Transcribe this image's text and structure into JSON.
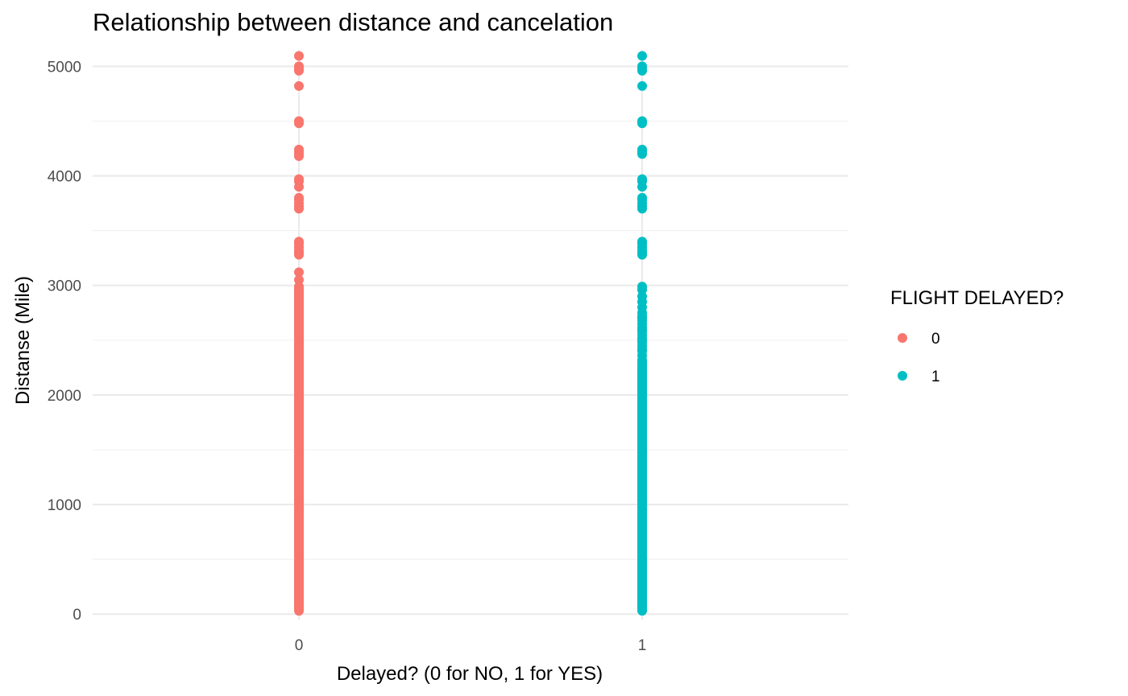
{
  "chart_data": {
    "type": "scatter",
    "title": "Relationship between distance and cancelation",
    "xlabel": "Delayed? (0 for NO, 1 for YES)",
    "ylabel": "Distanse (Mile)",
    "categories": [
      "0",
      "1"
    ],
    "ylim": [
      -50,
      5150
    ],
    "y_ticks": [
      0,
      1000,
      2000,
      3000,
      4000,
      5000
    ],
    "y_tick_labels": [
      "0",
      "1000",
      "2000",
      "3000",
      "4000",
      "5000"
    ],
    "grid": true,
    "legend": {
      "title": "FLIGHT DELAYED?",
      "position": "right",
      "entries": [
        {
          "label": "0",
          "color": "#F8766D"
        },
        {
          "label": "1",
          "color": "#00BFC4"
        }
      ]
    },
    "series": [
      {
        "category": "0",
        "color": "#F8766D",
        "dense_range": [
          30,
          2990
        ],
        "values": [
          3050,
          3120,
          3280,
          3300,
          3320,
          3350,
          3380,
          3400,
          3700,
          3720,
          3750,
          3780,
          3800,
          3900,
          3950,
          3970,
          4180,
          4200,
          4220,
          4240,
          4480,
          4500,
          4820,
          4960,
          4980,
          5000,
          5095
        ]
      },
      {
        "category": "1",
        "color": "#00BFC4",
        "dense_range": [
          30,
          2300
        ],
        "values": [
          2320,
          2360,
          2400,
          2420,
          2450,
          2480,
          2500,
          2520,
          2550,
          2580,
          2600,
          2620,
          2650,
          2680,
          2700,
          2720,
          2750,
          2800,
          2850,
          2900,
          2960,
          2990,
          3280,
          3300,
          3320,
          3350,
          3380,
          3400,
          3700,
          3720,
          3750,
          3780,
          3800,
          3900,
          3950,
          3970,
          4200,
          4220,
          4240,
          4480,
          4500,
          4820,
          4960,
          4980,
          5000,
          5095
        ]
      }
    ]
  }
}
